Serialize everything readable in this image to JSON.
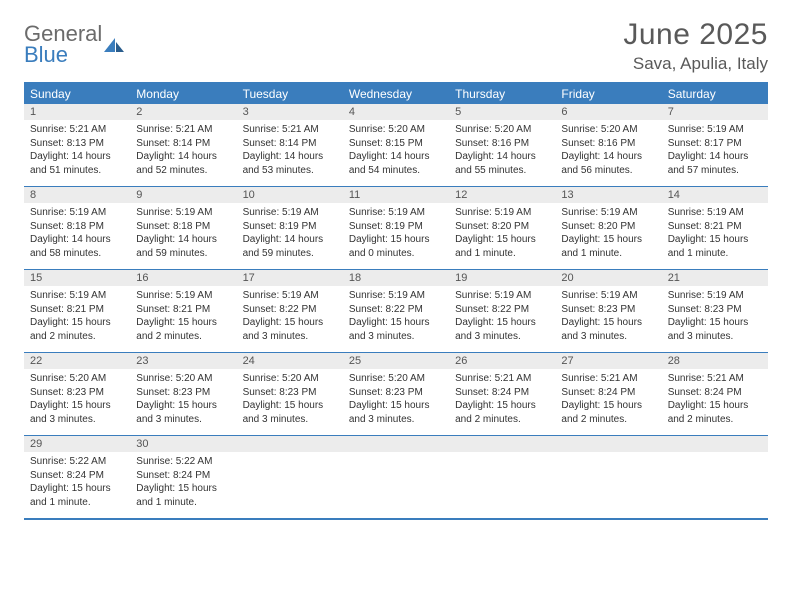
{
  "logo": {
    "line1": "General",
    "line2": "Blue"
  },
  "title": "June 2025",
  "location": "Sava, Apulia, Italy",
  "colors": {
    "accent": "#3a7dbd",
    "header_text": "#ffffff",
    "daynum_bg": "#ececec",
    "text": "#333333",
    "title_color": "#595959"
  },
  "day_headers": [
    "Sunday",
    "Monday",
    "Tuesday",
    "Wednesday",
    "Thursday",
    "Friday",
    "Saturday"
  ],
  "weeks": [
    [
      {
        "n": "1",
        "sunrise": "5:21 AM",
        "sunset": "8:13 PM",
        "daylight": "14 hours and 51 minutes."
      },
      {
        "n": "2",
        "sunrise": "5:21 AM",
        "sunset": "8:14 PM",
        "daylight": "14 hours and 52 minutes."
      },
      {
        "n": "3",
        "sunrise": "5:21 AM",
        "sunset": "8:14 PM",
        "daylight": "14 hours and 53 minutes."
      },
      {
        "n": "4",
        "sunrise": "5:20 AM",
        "sunset": "8:15 PM",
        "daylight": "14 hours and 54 minutes."
      },
      {
        "n": "5",
        "sunrise": "5:20 AM",
        "sunset": "8:16 PM",
        "daylight": "14 hours and 55 minutes."
      },
      {
        "n": "6",
        "sunrise": "5:20 AM",
        "sunset": "8:16 PM",
        "daylight": "14 hours and 56 minutes."
      },
      {
        "n": "7",
        "sunrise": "5:19 AM",
        "sunset": "8:17 PM",
        "daylight": "14 hours and 57 minutes."
      }
    ],
    [
      {
        "n": "8",
        "sunrise": "5:19 AM",
        "sunset": "8:18 PM",
        "daylight": "14 hours and 58 minutes."
      },
      {
        "n": "9",
        "sunrise": "5:19 AM",
        "sunset": "8:18 PM",
        "daylight": "14 hours and 59 minutes."
      },
      {
        "n": "10",
        "sunrise": "5:19 AM",
        "sunset": "8:19 PM",
        "daylight": "14 hours and 59 minutes."
      },
      {
        "n": "11",
        "sunrise": "5:19 AM",
        "sunset": "8:19 PM",
        "daylight": "15 hours and 0 minutes."
      },
      {
        "n": "12",
        "sunrise": "5:19 AM",
        "sunset": "8:20 PM",
        "daylight": "15 hours and 1 minute."
      },
      {
        "n": "13",
        "sunrise": "5:19 AM",
        "sunset": "8:20 PM",
        "daylight": "15 hours and 1 minute."
      },
      {
        "n": "14",
        "sunrise": "5:19 AM",
        "sunset": "8:21 PM",
        "daylight": "15 hours and 1 minute."
      }
    ],
    [
      {
        "n": "15",
        "sunrise": "5:19 AM",
        "sunset": "8:21 PM",
        "daylight": "15 hours and 2 minutes."
      },
      {
        "n": "16",
        "sunrise": "5:19 AM",
        "sunset": "8:21 PM",
        "daylight": "15 hours and 2 minutes."
      },
      {
        "n": "17",
        "sunrise": "5:19 AM",
        "sunset": "8:22 PM",
        "daylight": "15 hours and 3 minutes."
      },
      {
        "n": "18",
        "sunrise": "5:19 AM",
        "sunset": "8:22 PM",
        "daylight": "15 hours and 3 minutes."
      },
      {
        "n": "19",
        "sunrise": "5:19 AM",
        "sunset": "8:22 PM",
        "daylight": "15 hours and 3 minutes."
      },
      {
        "n": "20",
        "sunrise": "5:19 AM",
        "sunset": "8:23 PM",
        "daylight": "15 hours and 3 minutes."
      },
      {
        "n": "21",
        "sunrise": "5:19 AM",
        "sunset": "8:23 PM",
        "daylight": "15 hours and 3 minutes."
      }
    ],
    [
      {
        "n": "22",
        "sunrise": "5:20 AM",
        "sunset": "8:23 PM",
        "daylight": "15 hours and 3 minutes."
      },
      {
        "n": "23",
        "sunrise": "5:20 AM",
        "sunset": "8:23 PM",
        "daylight": "15 hours and 3 minutes."
      },
      {
        "n": "24",
        "sunrise": "5:20 AM",
        "sunset": "8:23 PM",
        "daylight": "15 hours and 3 minutes."
      },
      {
        "n": "25",
        "sunrise": "5:20 AM",
        "sunset": "8:23 PM",
        "daylight": "15 hours and 3 minutes."
      },
      {
        "n": "26",
        "sunrise": "5:21 AM",
        "sunset": "8:24 PM",
        "daylight": "15 hours and 2 minutes."
      },
      {
        "n": "27",
        "sunrise": "5:21 AM",
        "sunset": "8:24 PM",
        "daylight": "15 hours and 2 minutes."
      },
      {
        "n": "28",
        "sunrise": "5:21 AM",
        "sunset": "8:24 PM",
        "daylight": "15 hours and 2 minutes."
      }
    ],
    [
      {
        "n": "29",
        "sunrise": "5:22 AM",
        "sunset": "8:24 PM",
        "daylight": "15 hours and 1 minute."
      },
      {
        "n": "30",
        "sunrise": "5:22 AM",
        "sunset": "8:24 PM",
        "daylight": "15 hours and 1 minute."
      },
      null,
      null,
      null,
      null,
      null
    ]
  ],
  "labels": {
    "sunrise_prefix": "Sunrise: ",
    "sunset_prefix": "Sunset: ",
    "daylight_prefix": "Daylight: "
  }
}
